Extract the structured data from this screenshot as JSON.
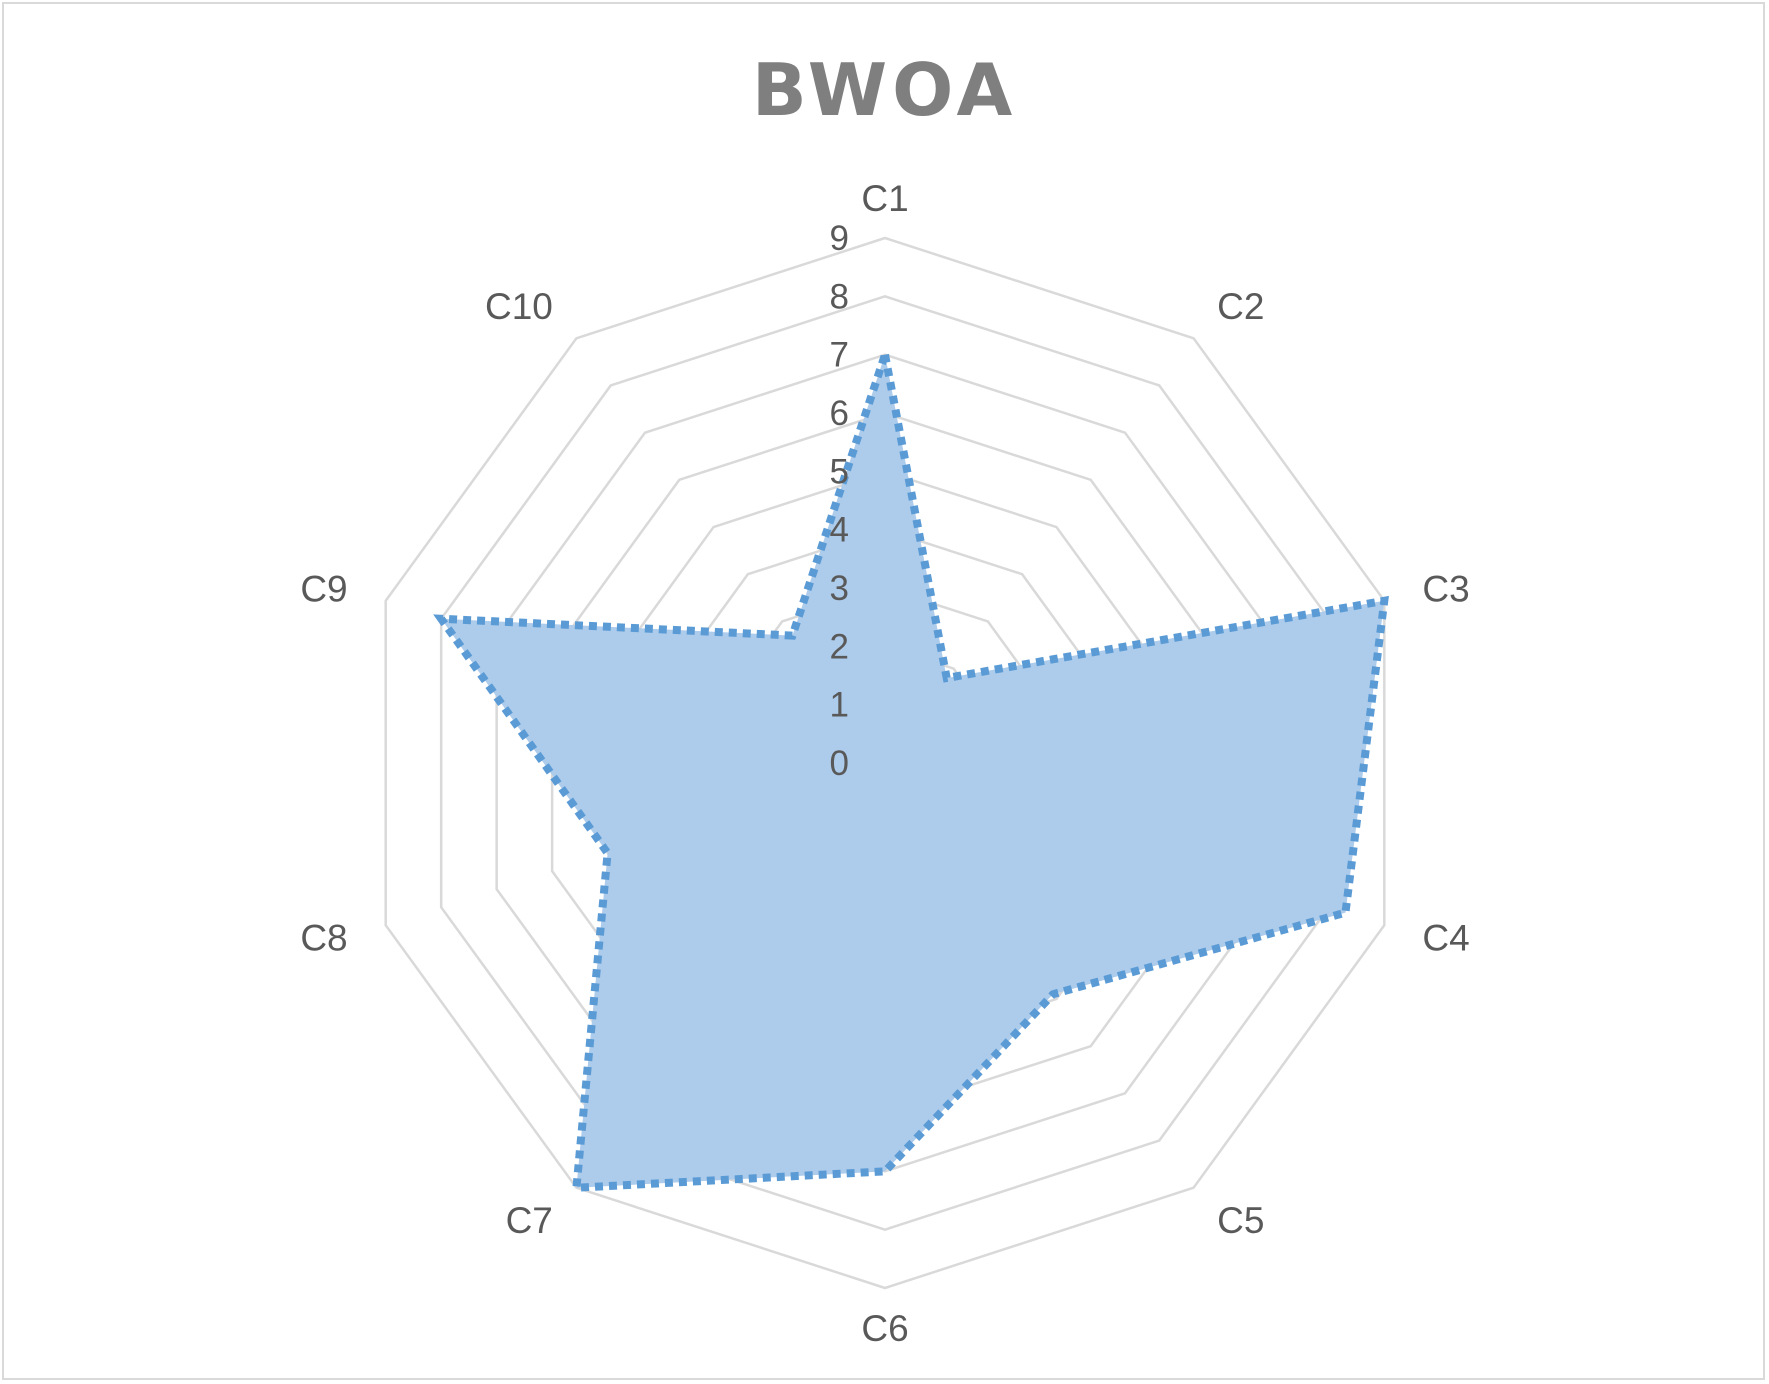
{
  "chart_data": {
    "type": "radar",
    "title": "BWOA",
    "categories": [
      "C1",
      "C2",
      "C3",
      "C4",
      "C5",
      "C6",
      "C7",
      "C8",
      "C9",
      "C10"
    ],
    "ticks": [
      "0",
      "1",
      "2",
      "3",
      "4",
      "5",
      "6",
      "7",
      "8",
      "9"
    ],
    "rlim": [
      0,
      9
    ],
    "grid": true,
    "legend": "none",
    "series": [
      {
        "values": [
          7,
          1.8,
          9,
          8.3,
          4.9,
          7,
          9,
          5,
          8,
          2.7
        ],
        "fill_color": "#adcbea",
        "line_color": "#5b9bd5"
      }
    ]
  }
}
